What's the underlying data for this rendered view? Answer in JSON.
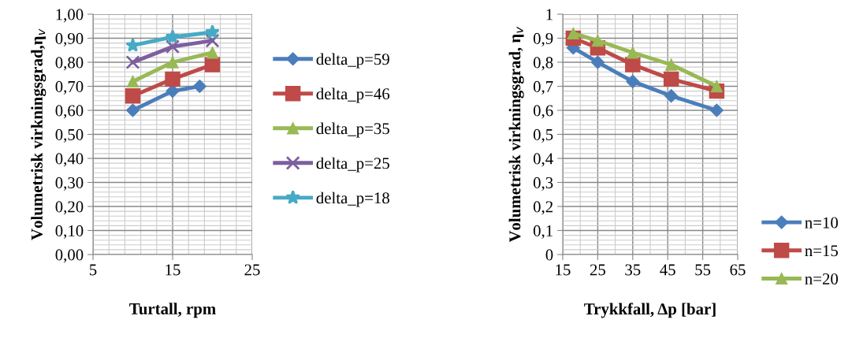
{
  "chart_data": [
    {
      "type": "line",
      "xlabel": "Turtall, rpm",
      "ylabel": "Volumetrisk virkningsgrad,η$_{v}$",
      "xlim": [
        5,
        25
      ],
      "xticks": [
        5,
        15,
        25
      ],
      "ylim": [
        0,
        1
      ],
      "yticks": [
        {
          "value": 0,
          "label": "0,00"
        },
        {
          "value": 0.1,
          "label": "0,10"
        },
        {
          "value": 0.2,
          "label": "0,20"
        },
        {
          "value": 0.3,
          "label": "0,30"
        },
        {
          "value": 0.4,
          "label": "0,40"
        },
        {
          "value": 0.5,
          "label": "0,50"
        },
        {
          "value": 0.6,
          "label": "0,60"
        },
        {
          "value": 0.7,
          "label": "0,70"
        },
        {
          "value": 0.8,
          "label": "0,80"
        },
        {
          "value": 0.9,
          "label": "0,90"
        },
        {
          "value": 1,
          "label": "1,00"
        }
      ],
      "grid": true,
      "legend": "right",
      "series": [
        {
          "name": "delta_p=59",
          "color": "#4a7ebb",
          "marker": "diamond",
          "x": [
            10,
            15,
            18.4
          ],
          "values": [
            0.6,
            0.68,
            0.7
          ]
        },
        {
          "name": "delta_p=46",
          "color": "#be4b48",
          "marker": "square",
          "x": [
            10,
            15,
            20
          ],
          "values": [
            0.66,
            0.73,
            0.79
          ]
        },
        {
          "name": "delta_p=35",
          "color": "#98b954",
          "marker": "triangle",
          "x": [
            10,
            15,
            20
          ],
          "values": [
            0.72,
            0.8,
            0.84
          ]
        },
        {
          "name": "delta_p=25",
          "color": "#7d5fa0",
          "marker": "cross",
          "x": [
            10,
            15,
            20
          ],
          "values": [
            0.8,
            0.865,
            0.89
          ]
        },
        {
          "name": "delta_p=18",
          "color": "#46aac5",
          "marker": "star",
          "x": [
            10,
            15,
            20
          ],
          "values": [
            0.87,
            0.905,
            0.925
          ]
        }
      ]
    },
    {
      "type": "line",
      "xlabel": "Trykkfall, Δp [bar]",
      "ylabel": "Volumetrisk virkningsgrad, η$_{v}$",
      "xlim": [
        15,
        65
      ],
      "xticks": [
        15,
        25,
        35,
        45,
        55,
        65
      ],
      "ylim": [
        0,
        1
      ],
      "yticks": [
        0,
        {
          "value": 0.1,
          "label": "0,1"
        },
        {
          "value": 0.2,
          "label": "0,2"
        },
        {
          "value": 0.3,
          "label": "0,3"
        },
        {
          "value": 0.4,
          "label": "0,4"
        },
        {
          "value": 0.5,
          "label": "0,5"
        },
        {
          "value": 0.6,
          "label": "0,6"
        },
        {
          "value": 0.7,
          "label": "0,7"
        },
        {
          "value": 0.8,
          "label": "0,8"
        },
        {
          "value": 0.9,
          "label": "0,9"
        },
        1
      ],
      "grid": true,
      "legend": "right",
      "series": [
        {
          "name": "n=10",
          "color": "#4a7ebb",
          "marker": "diamond",
          "x": [
            18,
            25,
            35,
            46,
            59
          ],
          "values": [
            0.86,
            0.8,
            0.72,
            0.66,
            0.6
          ]
        },
        {
          "name": "n=15",
          "color": "#be4b48",
          "marker": "square",
          "x": [
            18,
            25,
            35,
            46,
            59
          ],
          "values": [
            0.9,
            0.86,
            0.79,
            0.73,
            0.68
          ]
        },
        {
          "name": "n=20",
          "color": "#98b954",
          "marker": "triangle",
          "x": [
            18,
            25,
            35,
            46,
            59
          ],
          "values": [
            0.92,
            0.89,
            0.84,
            0.79,
            0.7
          ]
        }
      ]
    }
  ]
}
